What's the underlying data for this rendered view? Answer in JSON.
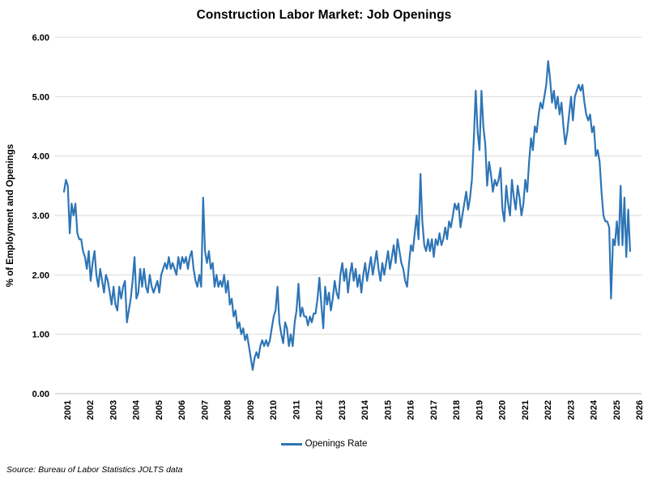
{
  "title": "Construction Labor Market: Job Openings",
  "source_note": "Source: Bureau of Labor Statistics JOLTS data",
  "legend": {
    "label": "Openings Rate"
  },
  "colors": {
    "line": "#2E75B6",
    "gridline": "#D9D9D9",
    "axis_line": "#BFBFBF",
    "text": "#000000"
  },
  "chart_data": {
    "type": "line",
    "title": "Construction Labor Market: Job Openings",
    "xlabel": "",
    "ylabel": "% of Employment and Openings",
    "ylim": [
      0,
      6
    ],
    "grid": true,
    "legend_position": "bottom",
    "ytick_labels": [
      "0.00",
      "1.00",
      "2.00",
      "3.00",
      "4.00",
      "5.00",
      "6.00"
    ],
    "xtick_labels": [
      "2001",
      "2002",
      "2003",
      "2004",
      "2005",
      "2006",
      "2007",
      "2008",
      "2009",
      "2010",
      "2011",
      "2012",
      "2013",
      "2014",
      "2015",
      "2016",
      "2017",
      "2018",
      "2019",
      "2020",
      "2021",
      "2022",
      "2023",
      "2024",
      "2025",
      "2026"
    ],
    "series": [
      {
        "name": "Openings Rate",
        "frequency": "monthly",
        "start": "2001-01",
        "end": "2025-10",
        "values": [
          3.4,
          3.6,
          3.5,
          2.7,
          3.2,
          3.0,
          3.2,
          2.7,
          2.6,
          2.6,
          2.4,
          2.3,
          2.1,
          2.4,
          1.9,
          2.2,
          2.4,
          2.0,
          1.8,
          2.1,
          1.9,
          1.7,
          2.0,
          1.9,
          1.7,
          1.5,
          1.8,
          1.5,
          1.4,
          1.8,
          1.6,
          1.8,
          1.9,
          1.2,
          1.4,
          1.6,
          1.9,
          2.3,
          1.6,
          1.7,
          2.1,
          1.8,
          2.1,
          1.8,
          1.7,
          2.0,
          1.8,
          1.7,
          1.8,
          1.9,
          1.7,
          2.0,
          2.1,
          2.2,
          2.1,
          2.3,
          2.1,
          2.2,
          2.1,
          2.0,
          2.3,
          2.1,
          2.3,
          2.2,
          2.3,
          2.1,
          2.3,
          2.4,
          2.1,
          1.9,
          1.8,
          2.0,
          1.8,
          3.3,
          2.4,
          2.2,
          2.4,
          2.1,
          2.2,
          1.8,
          2.0,
          1.8,
          1.9,
          1.8,
          2.0,
          1.7,
          1.9,
          1.5,
          1.6,
          1.3,
          1.4,
          1.1,
          1.2,
          1.0,
          1.1,
          0.9,
          1.0,
          0.8,
          0.6,
          0.4,
          0.6,
          0.7,
          0.6,
          0.8,
          0.9,
          0.8,
          0.9,
          0.8,
          0.9,
          1.1,
          1.3,
          1.4,
          1.8,
          1.2,
          1.0,
          0.85,
          1.2,
          1.1,
          0.8,
          1.0,
          0.8,
          1.2,
          1.4,
          1.85,
          1.3,
          1.45,
          1.3,
          1.3,
          1.15,
          1.3,
          1.2,
          1.35,
          1.35,
          1.6,
          1.95,
          1.5,
          1.1,
          1.8,
          1.5,
          1.7,
          1.4,
          1.6,
          1.9,
          1.7,
          1.6,
          2.0,
          2.2,
          1.9,
          2.1,
          1.7,
          2.0,
          2.2,
          1.9,
          2.1,
          1.8,
          2.0,
          1.7,
          2.0,
          2.2,
          1.9,
          2.1,
          2.3,
          2.0,
          2.2,
          2.4,
          2.1,
          1.9,
          2.2,
          2.0,
          2.2,
          2.4,
          2.1,
          2.3,
          2.5,
          2.2,
          2.6,
          2.4,
          2.2,
          2.1,
          1.9,
          1.8,
          2.2,
          2.5,
          2.4,
          2.7,
          3.0,
          2.6,
          3.7,
          2.9,
          2.5,
          2.4,
          2.6,
          2.4,
          2.6,
          2.3,
          2.6,
          2.5,
          2.7,
          2.5,
          2.6,
          2.8,
          2.6,
          2.9,
          2.8,
          3.0,
          3.2,
          3.1,
          3.2,
          2.8,
          3.0,
          3.2,
          3.4,
          3.1,
          3.3,
          3.6,
          4.3,
          5.1,
          4.4,
          4.1,
          5.1,
          4.5,
          4.2,
          3.5,
          3.9,
          3.7,
          3.4,
          3.6,
          3.5,
          3.6,
          3.8,
          3.1,
          2.9,
          3.5,
          3.2,
          3.0,
          3.6,
          3.3,
          3.1,
          3.5,
          3.3,
          3.0,
          3.2,
          3.6,
          3.4,
          3.9,
          4.3,
          4.1,
          4.5,
          4.4,
          4.7,
          4.9,
          4.8,
          5.0,
          5.2,
          5.6,
          5.3,
          4.9,
          5.1,
          4.8,
          5.0,
          4.7,
          4.9,
          4.5,
          4.2,
          4.4,
          4.7,
          5.0,
          4.6,
          5.0,
          5.1,
          5.2,
          5.1,
          5.2,
          4.9,
          4.7,
          4.6,
          4.7,
          4.4,
          4.5,
          4.0,
          4.1,
          3.9,
          3.4,
          3.0,
          2.9,
          2.9,
          2.8,
          1.6,
          2.6,
          2.5,
          2.9,
          2.5,
          3.5,
          2.5,
          3.3,
          2.3,
          3.1,
          2.4
        ]
      }
    ]
  }
}
